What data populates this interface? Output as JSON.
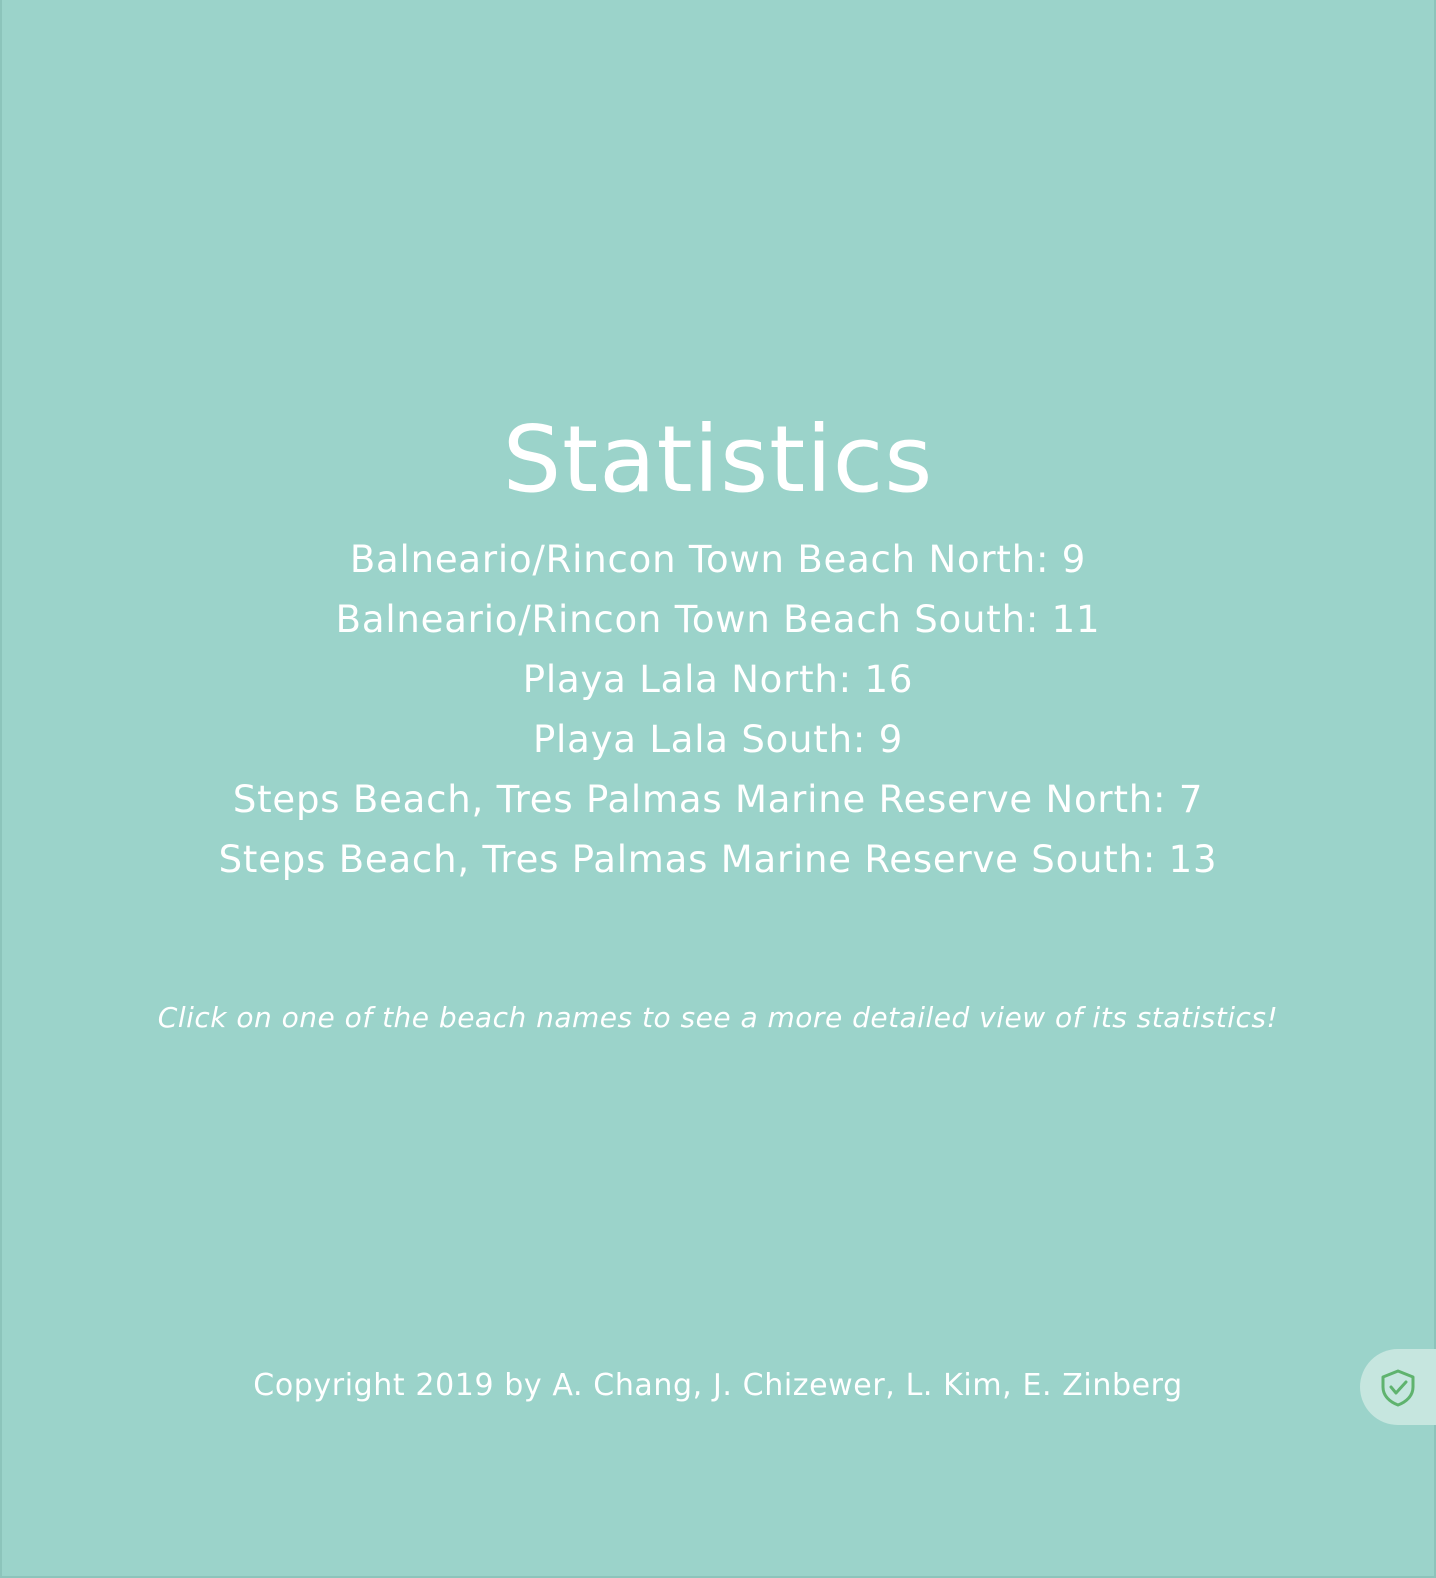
{
  "page": {
    "title": "Statistics",
    "beaches": [
      {
        "label": "Balneario/Rincon Town Beach North: 9"
      },
      {
        "label": "Balneario/Rincon Town Beach South: 11"
      },
      {
        "label": "Playa Lala North: 16"
      },
      {
        "label": "Playa Lala South: 9"
      },
      {
        "label": "Steps Beach, Tres Palmas Marine Reserve North: 7"
      },
      {
        "label": "Steps Beach, Tres Palmas Marine Reserve South: 13"
      }
    ],
    "hint": "Click on one of the beach names to see a more detailed view of its statistics!",
    "copyright": "Copyright 2019 by A. Chang, J. Chizewer, L. Kim, E. Zinberg"
  },
  "colors": {
    "background": "#9bd3ca",
    "text": "#ffffff",
    "badge": "#c6e6df",
    "shield": "#5fb36e"
  },
  "icons": {
    "badge": "shield-check-icon"
  }
}
